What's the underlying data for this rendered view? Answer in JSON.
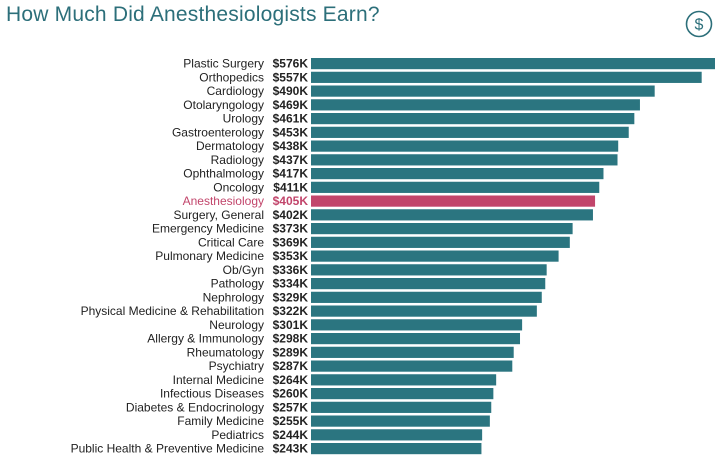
{
  "title": "How Much Did Anesthesiologists Earn?",
  "icon": "dollar-sign-icon",
  "colors": {
    "bar": "#2b7580",
    "highlight": "#c2456b",
    "title": "#2c6f7a"
  },
  "chart_data": {
    "type": "bar",
    "orientation": "horizontal",
    "title": "How Much Did Anesthesiologists Earn?",
    "highlight_category": "Anesthesiology",
    "categories": [
      "Plastic Surgery",
      "Orthopedics",
      "Cardiology",
      "Otolaryngology",
      "Urology",
      "Gastroenterology",
      "Dermatology",
      "Radiology",
      "Ophthalmology",
      "Oncology",
      "Anesthesiology",
      "Surgery, General",
      "Emergency Medicine",
      "Critical Care",
      "Pulmonary Medicine",
      "Ob/Gyn",
      "Pathology",
      "Nephrology",
      "Physical Medicine & Rehabilitation",
      "Neurology",
      "Allergy & Immunology",
      "Rheumatology",
      "Psychiatry",
      "Internal Medicine",
      "Infectious Diseases",
      "Diabetes & Endocrinology",
      "Family Medicine",
      "Pediatrics",
      "Public Health & Preventive Medicine"
    ],
    "values": [
      576,
      557,
      490,
      469,
      461,
      453,
      438,
      437,
      417,
      411,
      405,
      402,
      373,
      369,
      353,
      336,
      334,
      329,
      322,
      301,
      298,
      289,
      287,
      264,
      260,
      257,
      255,
      244,
      243
    ],
    "value_labels": [
      "$576K",
      "$557K",
      "$490K",
      "$469K",
      "$461K",
      "$453K",
      "$438K",
      "$437K",
      "$417K",
      "$411K",
      "$405K",
      "$402K",
      "$373K",
      "$369K",
      "$353K",
      "$336K",
      "$334K",
      "$329K",
      "$322K",
      "$301K",
      "$298K",
      "$289K",
      "$287K",
      "$264K",
      "$260K",
      "$257K",
      "$255K",
      "$244K",
      "$243K"
    ],
    "unit": "$K",
    "xlim": [
      0,
      576
    ]
  }
}
